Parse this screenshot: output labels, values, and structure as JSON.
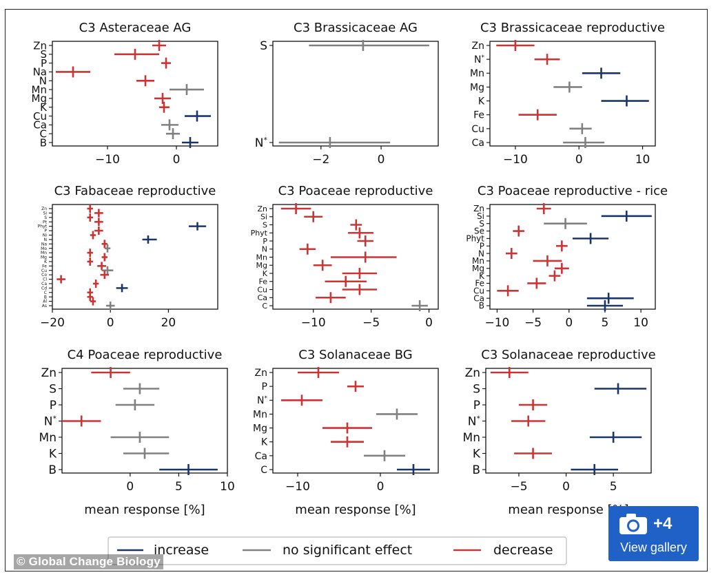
{
  "colors": {
    "increase": "#1a3668",
    "no_effect": "#808080",
    "decrease": "#cc3333"
  },
  "legend": [
    {
      "key": "increase",
      "label": "increase"
    },
    {
      "key": "no_effect",
      "label": "no significant effect"
    },
    {
      "key": "decrease",
      "label": "decrease"
    }
  ],
  "credit": "© Global Change Biology",
  "gallery": {
    "count": "+4",
    "label": "View gallery"
  },
  "xlabel": "mean response [%]",
  "chart_data": [
    {
      "type": "forest",
      "title": "C3 Asteraceae AG",
      "xlim": [
        -18,
        6
      ],
      "xticks": [
        -10,
        0
      ],
      "xlabel": "",
      "categories": [
        "Zn",
        "S",
        "P",
        "Na",
        "N",
        "Mn",
        "Mg",
        "K",
        "Cu",
        "Ca",
        "C",
        "B"
      ],
      "estimates": [
        -2.5,
        -6,
        -1.5,
        -15,
        -4.5,
        1.5,
        -2,
        -1.8,
        3,
        -1,
        -0.5,
        2
      ],
      "ci_low": [
        -3.5,
        -9,
        -2.2,
        -17.5,
        -5.8,
        -1,
        -3.2,
        -2.5,
        1.2,
        -2.2,
        -1.5,
        0.8
      ],
      "ci_high": [
        -1.5,
        -2.5,
        -0.8,
        -12.5,
        -3.2,
        4,
        -0.8,
        -1,
        5,
        0.3,
        0.5,
        3.2
      ],
      "effect": [
        "decrease",
        "decrease",
        "decrease",
        "decrease",
        "decrease",
        "no_effect",
        "decrease",
        "decrease",
        "increase",
        "no_effect",
        "no_effect",
        "increase"
      ]
    },
    {
      "type": "forest",
      "title": "C3 Brassicaceae AG",
      "xlim": [
        -3.6,
        1.9
      ],
      "xticks": [
        -2,
        0
      ],
      "xlabel": "",
      "categories": [
        "S",
        "N*"
      ],
      "estimates": [
        -0.6,
        -1.7
      ],
      "ci_low": [
        -2.4,
        -3.4
      ],
      "ci_high": [
        1.6,
        0.3
      ],
      "effect": [
        "no_effect",
        "no_effect"
      ]
    },
    {
      "type": "forest",
      "title": "C3 Brassicaceae reproductive",
      "xlim": [
        -14,
        12
      ],
      "xticks": [
        -10,
        0,
        10
      ],
      "xlabel": "",
      "categories": [
        "Zn",
        "N*",
        "Mn",
        "Mg",
        "K",
        "Fe",
        "Cu",
        "Ca"
      ],
      "estimates": [
        -10,
        -5,
        3.5,
        -1.5,
        7.5,
        -6.5,
        0.5,
        1
      ],
      "ci_low": [
        -13,
        -7,
        0.5,
        -4,
        3.5,
        -9.5,
        -1.5,
        -2.5
      ],
      "ci_high": [
        -7,
        -3,
        6.5,
        0.5,
        11,
        -3.5,
        2,
        4
      ],
      "effect": [
        "decrease",
        "decrease",
        "increase",
        "no_effect",
        "increase",
        "decrease",
        "no_effect",
        "no_effect"
      ]
    },
    {
      "type": "forest",
      "title": "C3 Fabaceae reproductive",
      "xlim": [
        -20,
        37
      ],
      "xticks": [
        -20,
        0,
        20
      ],
      "xlabel": "",
      "categories": [
        "Zn",
        "Si",
        "S",
        "Pt",
        "Phyt",
        "P",
        "Ni",
        "N",
        "Na",
        "Mo",
        "Mn",
        "Mg",
        "K",
        "Fe",
        "Cu",
        "Co",
        "Cl",
        "Ca",
        "Cd",
        "C",
        "B",
        "Al",
        "As"
      ],
      "estimates": [
        -7,
        -4,
        -7,
        -4,
        -3,
        -4,
        -6,
        13,
        -2,
        -1,
        -7,
        -2,
        -7,
        -3,
        -1,
        -2,
        -17,
        -5,
        4,
        -7,
        -7,
        -6,
        0
      ],
      "ci_low": [
        -8,
        -5.5,
        -8,
        -5.5,
        -4.5,
        -5.5,
        -7,
        11,
        -3,
        -2,
        -8,
        -3,
        -8,
        -4.5,
        -3,
        -3.5,
        -18.5,
        -6,
        2,
        -8,
        -8,
        -7,
        -1.5
      ],
      "ci_high": [
        -6,
        -2.5,
        -6,
        -2.5,
        -1.5,
        -2.5,
        -5,
        16,
        -1,
        0,
        -6,
        -1,
        -6,
        -1.5,
        1,
        -0.5,
        -15.5,
        -4,
        6,
        -6,
        -6,
        -5,
        1.5
      ],
      "special": {
        "index": 4,
        "estimate": 30,
        "ci_low": 27,
        "ci_high": 33,
        "effect": "increase"
      },
      "effect": [
        "decrease",
        "decrease",
        "decrease",
        "decrease",
        "decrease",
        "decrease",
        "decrease",
        "increase",
        "decrease",
        "no_effect",
        "decrease",
        "decrease",
        "decrease",
        "decrease",
        "no_effect",
        "decrease",
        "decrease",
        "decrease",
        "increase",
        "decrease",
        "decrease",
        "decrease",
        "no_effect"
      ]
    },
    {
      "type": "forest",
      "title": "C3 Poaceae reproductive",
      "xlim": [
        -13.5,
        0.8
      ],
      "xticks": [
        -10,
        -5,
        0
      ],
      "xlabel": "",
      "categories": [
        "Zn",
        "Si",
        "S",
        "Phyt",
        "P",
        "N",
        "Mn",
        "Mg",
        "K",
        "Fe",
        "Cu",
        "Ca",
        "C"
      ],
      "estimates": [
        -11.5,
        -10,
        -6.3,
        -6,
        -5.5,
        -10.5,
        -5.5,
        -9.2,
        -6,
        -7.2,
        -6,
        -8.5,
        -0.8
      ],
      "ci_low": [
        -12.8,
        -10.8,
        -6.8,
        -7,
        -6.2,
        -11.2,
        -8.5,
        -10,
        -7.5,
        -9,
        -7.5,
        -9.8,
        -1.5
      ],
      "ci_high": [
        -10.2,
        -9.2,
        -5.8,
        -4.8,
        -4.8,
        -9.8,
        -2.8,
        -8.4,
        -4.5,
        -5.4,
        -4.5,
        -7.2,
        -0.1
      ],
      "effect": [
        "decrease",
        "decrease",
        "decrease",
        "decrease",
        "decrease",
        "decrease",
        "decrease",
        "decrease",
        "decrease",
        "decrease",
        "decrease",
        "decrease",
        "no_effect"
      ]
    },
    {
      "type": "forest",
      "title": "C3 Poaceae reproductive - rice",
      "xlim": [
        -11,
        12
      ],
      "xticks": [
        -10,
        -5,
        0,
        5,
        10
      ],
      "xlabel": "",
      "categories": [
        "Zn",
        "Si",
        "S",
        "Se",
        "Phyt",
        "P",
        "N",
        "Mn",
        "Mg",
        "K",
        "Fe",
        "Cu",
        "Ca",
        "B"
      ],
      "estimates": [
        -3.5,
        8,
        -0.5,
        -7,
        3,
        -1,
        -8,
        -3,
        -1,
        -2,
        -4.5,
        -8.5,
        5.5,
        5
      ],
      "ci_low": [
        -4.5,
        4.5,
        -3.5,
        -7.8,
        0.5,
        -1.8,
        -8.8,
        -5,
        -2,
        -2.8,
        -5.8,
        -10,
        2.5,
        2.5
      ],
      "ci_high": [
        -2.5,
        11.5,
        2.5,
        -6.2,
        5.5,
        -0.2,
        -7.2,
        -1,
        0,
        -1.2,
        -3.2,
        -7,
        9,
        7.5
      ],
      "effect": [
        "decrease",
        "increase",
        "no_effect",
        "decrease",
        "increase",
        "decrease",
        "decrease",
        "decrease",
        "decrease",
        "decrease",
        "decrease",
        "decrease",
        "increase",
        "increase"
      ]
    },
    {
      "type": "forest",
      "title": "C4 Poaceae reproductive",
      "xlim": [
        -7,
        10
      ],
      "xticks": [
        0,
        5,
        10
      ],
      "xlabel": "mean response [%]",
      "categories": [
        "Zn",
        "S",
        "P",
        "N*",
        "Mn",
        "K",
        "B"
      ],
      "estimates": [
        -2,
        1,
        0.5,
        -5,
        1,
        1.5,
        6
      ],
      "ci_low": [
        -4,
        -0.7,
        -1.5,
        -7,
        -2,
        -0.7,
        3
      ],
      "ci_high": [
        0,
        3,
        2.5,
        -3,
        4,
        4,
        9
      ],
      "effect": [
        "decrease",
        "no_effect",
        "no_effect",
        "decrease",
        "no_effect",
        "no_effect",
        "increase"
      ]
    },
    {
      "type": "forest",
      "title": "C3 Solanaceae BG",
      "xlim": [
        -13,
        7
      ],
      "xticks": [
        -10,
        0
      ],
      "xlabel": "mean response [%]",
      "categories": [
        "Zn",
        "P",
        "N*",
        "Mn",
        "Mg",
        "K",
        "Ca",
        "C"
      ],
      "estimates": [
        -7.5,
        -3,
        -9.5,
        2,
        -4,
        -4,
        0.5,
        4
      ],
      "ci_low": [
        -10,
        -4,
        -12,
        -0.5,
        -7,
        -6,
        -2,
        2
      ],
      "ci_high": [
        -5,
        -2,
        -7,
        4.5,
        -1,
        -2,
        3,
        6
      ],
      "effect": [
        "decrease",
        "decrease",
        "decrease",
        "no_effect",
        "decrease",
        "decrease",
        "no_effect",
        "increase"
      ]
    },
    {
      "type": "forest",
      "title": "C3 Solanaceae reproductive",
      "xlim": [
        -8.5,
        9
      ],
      "xticks": [
        -5,
        0,
        5
      ],
      "xlabel": "mean response [%]",
      "categories": [
        "Zn",
        "S",
        "P",
        "N*",
        "Mn",
        "K",
        "B"
      ],
      "estimates": [
        -6,
        5.5,
        -3.5,
        -4,
        5,
        -3.5,
        3
      ],
      "ci_low": [
        -8,
        3,
        -5,
        -5.8,
        2.5,
        -5.5,
        0.5
      ],
      "ci_high": [
        -4,
        8.5,
        -2,
        -2.2,
        8,
        -1.5,
        5.5
      ],
      "effect": [
        "decrease",
        "increase",
        "decrease",
        "decrease",
        "increase",
        "decrease",
        "increase"
      ]
    }
  ]
}
